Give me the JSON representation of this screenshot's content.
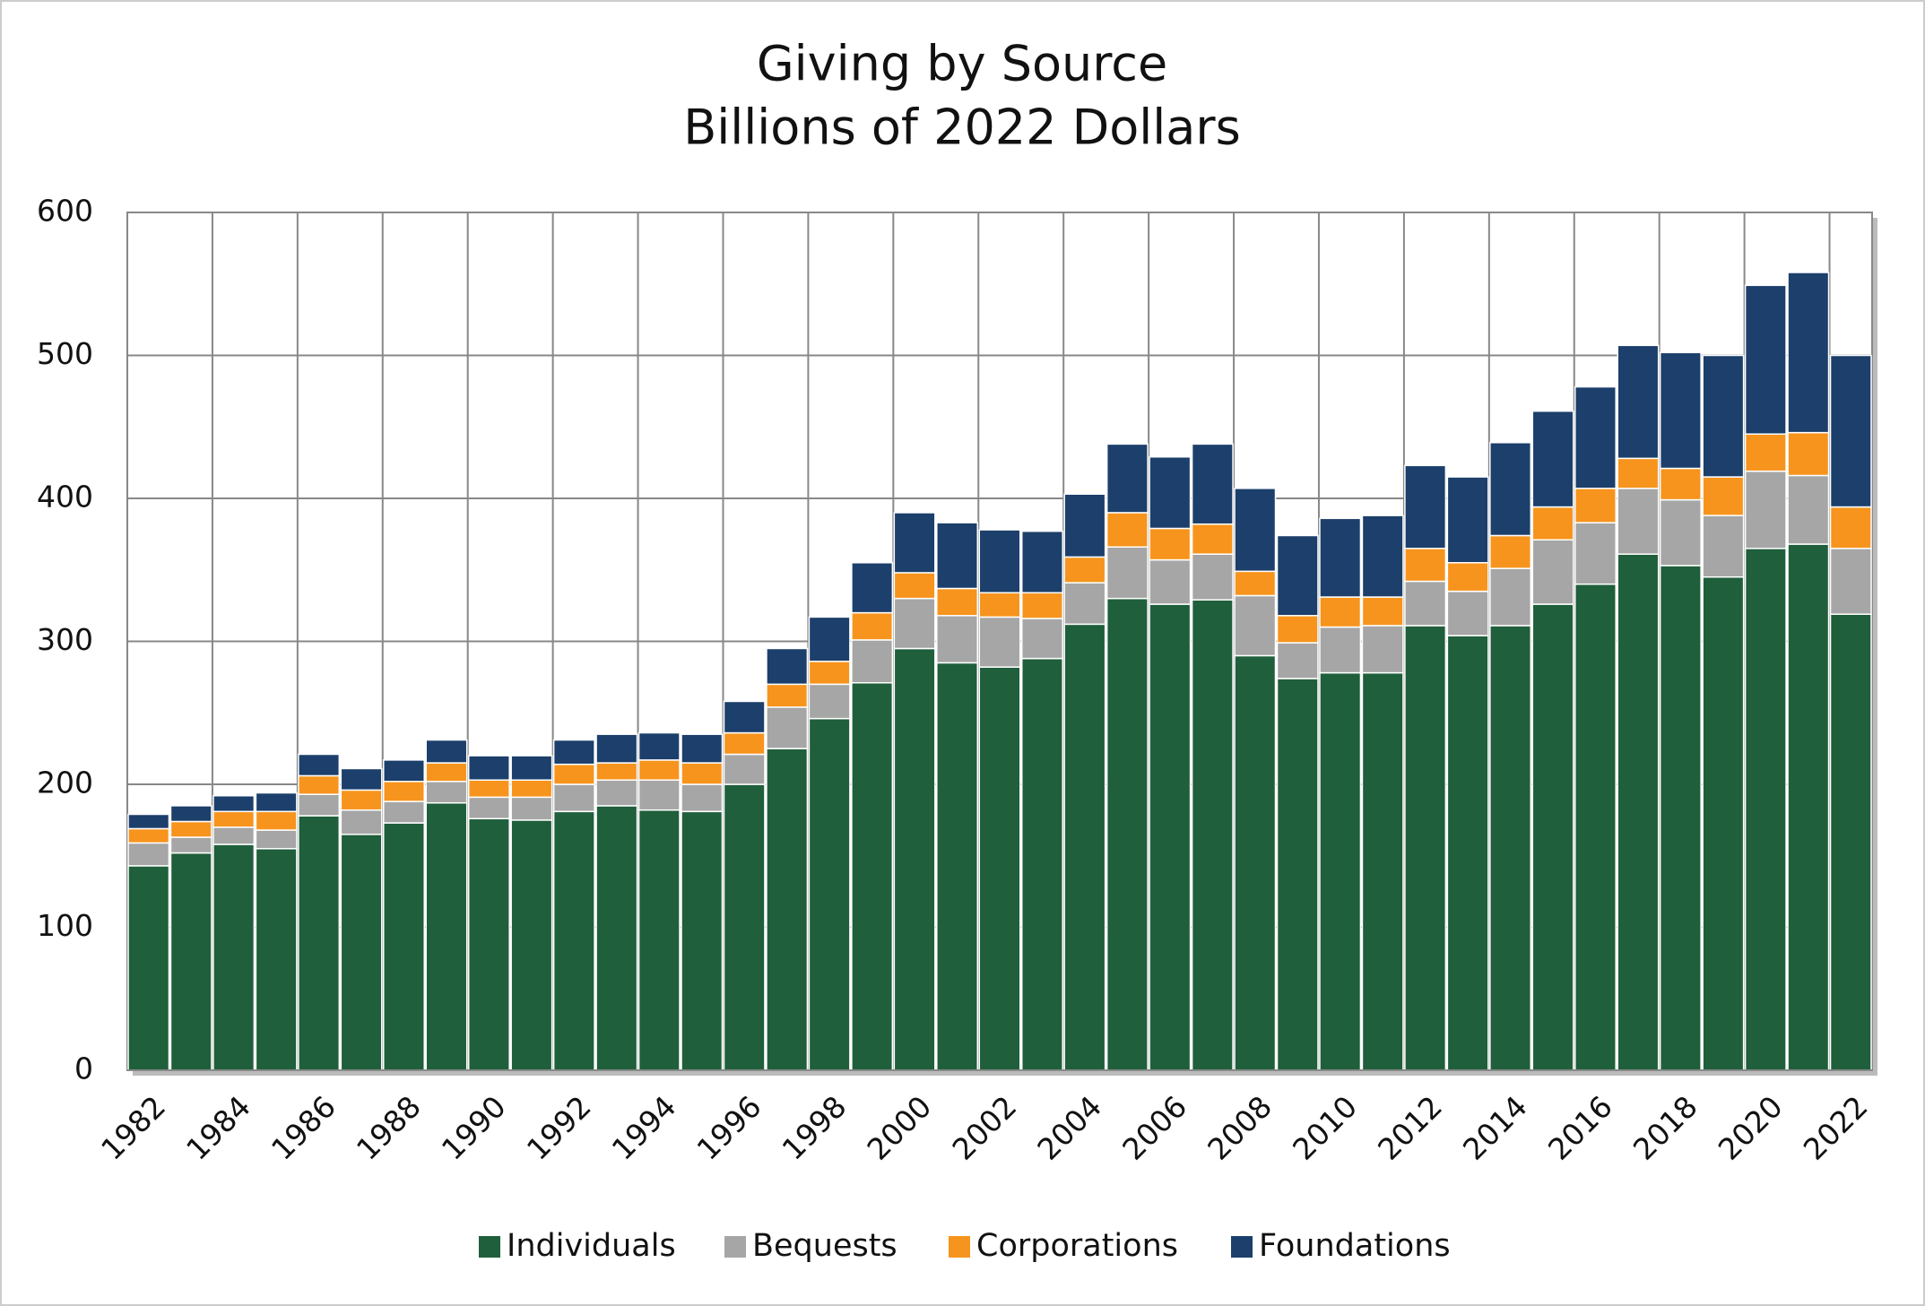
{
  "chart_data": {
    "type": "stacked_bar",
    "title": "Giving by Source",
    "subtitle": "Billions of 2022 Dollars",
    "categories": [
      "1982",
      null,
      "1984",
      null,
      "1986",
      null,
      "1988",
      null,
      "1990",
      null,
      "1992",
      null,
      "1994",
      null,
      "1996",
      null,
      "1998",
      null,
      "2000",
      null,
      "2002",
      null,
      "2004",
      null,
      "2006",
      null,
      "2008",
      null,
      "2010",
      null,
      "2012",
      null,
      "2014",
      null,
      "2016",
      null,
      "2018",
      null,
      "2020",
      null,
      "2022"
    ],
    "series": [
      {
        "name": "Individuals",
        "color": "#1f5f3b",
        "values": [
          143,
          152,
          158,
          155,
          178,
          165,
          173,
          187,
          176,
          175,
          181,
          185,
          182,
          181,
          200,
          225,
          246,
          271,
          295,
          285,
          282,
          288,
          312,
          330,
          326,
          329,
          290,
          274,
          278,
          278,
          311,
          304,
          311,
          326,
          340,
          361,
          353,
          345,
          365,
          368,
          319
        ]
      },
      {
        "name": "Bequests",
        "color": "#a6a6a6",
        "values": [
          16,
          11,
          12,
          13,
          15,
          17,
          15,
          15,
          15,
          16,
          19,
          18,
          21,
          19,
          21,
          29,
          24,
          30,
          35,
          33,
          35,
          28,
          29,
          36,
          31,
          32,
          42,
          25,
          32,
          33,
          31,
          31,
          40,
          45,
          43,
          46,
          46,
          43,
          54,
          48,
          46
        ]
      },
      {
        "name": "Corporations",
        "color": "#f7941d",
        "values": [
          10,
          11,
          11,
          13,
          13,
          14,
          14,
          13,
          12,
          12,
          14,
          12,
          14,
          15,
          15,
          16,
          16,
          19,
          18,
          19,
          17,
          18,
          18,
          24,
          22,
          21,
          17,
          19,
          21,
          20,
          23,
          20,
          23,
          23,
          24,
          21,
          22,
          27,
          26,
          30,
          29
        ]
      },
      {
        "name": "Foundations",
        "color": "#1c3f6b",
        "values": [
          10,
          11,
          11,
          13,
          15,
          15,
          15,
          16,
          17,
          17,
          17,
          20,
          19,
          20,
          22,
          25,
          31,
          35,
          42,
          46,
          44,
          43,
          44,
          48,
          50,
          56,
          58,
          56,
          55,
          57,
          58,
          60,
          65,
          67,
          71,
          79,
          81,
          85,
          104,
          112,
          106
        ]
      }
    ],
    "ylim": [
      0,
      600
    ],
    "yticks": [
      0,
      100,
      200,
      300,
      400,
      500,
      600
    ],
    "grid": true,
    "legend": "bottom"
  }
}
